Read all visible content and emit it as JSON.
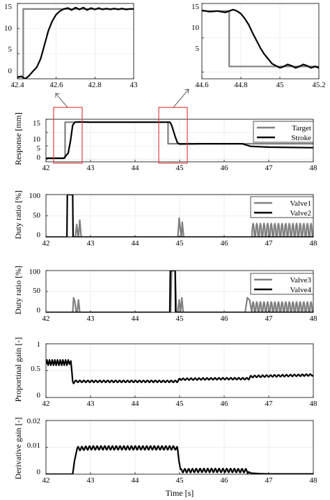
{
  "chart_data": [
    {
      "id": "zoom1",
      "type": "line",
      "xlim": [
        42.4,
        43.0
      ],
      "ylim": [
        0,
        15
      ],
      "xticks": [
        42.4,
        42.6,
        42.8,
        43
      ],
      "xtick_labels": [
        "42.4",
        "42.6",
        "42.8",
        "43"
      ],
      "yticks": [
        0,
        5,
        10,
        15
      ],
      "ytick_labels": [
        "0",
        "5",
        "10",
        "15"
      ],
      "xlabel": "",
      "ylabel": "",
      "grid": true,
      "series": [
        {
          "color": "#808080",
          "x": [
            42.4,
            42.43,
            42.43,
            43.0
          ],
          "y": [
            0.4,
            0.4,
            13.9,
            13.9
          ]
        },
        {
          "color": "#000000",
          "x": [
            42.4,
            42.42,
            42.44,
            42.46,
            42.48,
            42.5,
            42.52,
            42.54,
            42.56,
            42.58,
            42.6,
            42.62,
            42.64,
            42.66,
            42.68,
            42.7,
            42.72,
            42.74,
            42.76,
            42.78,
            42.8,
            42.82,
            42.84,
            42.86,
            42.88,
            42.9,
            42.92,
            42.94,
            42.96,
            42.98,
            43.0
          ],
          "y": [
            0.3,
            0.5,
            0.0,
            0.6,
            1.5,
            2.3,
            4.0,
            6.8,
            9.6,
            11.5,
            12.8,
            13.5,
            13.9,
            14.1,
            13.7,
            14.2,
            13.8,
            14.2,
            13.7,
            14.1,
            13.8,
            14.1,
            13.8,
            14.0,
            13.8,
            14.0,
            13.8,
            14.0,
            13.8,
            13.9,
            13.9
          ]
        }
      ]
    },
    {
      "id": "zoom2",
      "type": "line",
      "xlim": [
        44.6,
        45.2
      ],
      "ylim": [
        4,
        15
      ],
      "xticks": [
        44.6,
        44.8,
        45,
        45.2
      ],
      "xtick_labels": [
        "44.6",
        "44.8",
        "45",
        "45.2"
      ],
      "yticks": [
        5,
        10,
        15
      ],
      "ytick_labels": [
        "5",
        "10",
        "15"
      ],
      "xlabel": "",
      "ylabel": "",
      "grid": true,
      "series": [
        {
          "color": "#808080",
          "x": [
            44.6,
            44.74,
            44.74,
            45.2
          ],
          "y": [
            13.9,
            13.9,
            5.8,
            5.8
          ]
        },
        {
          "color": "#000000",
          "x": [
            44.6,
            44.64,
            44.68,
            44.72,
            44.76,
            44.78,
            44.8,
            44.82,
            44.84,
            44.86,
            44.88,
            44.9,
            44.92,
            44.94,
            44.96,
            44.98,
            45.0,
            45.02,
            45.04,
            45.06,
            45.08,
            45.1,
            45.12,
            45.14,
            45.16,
            45.18,
            45.2
          ],
          "y": [
            14.0,
            13.8,
            13.9,
            13.7,
            14.1,
            13.9,
            13.5,
            12.8,
            11.9,
            10.7,
            9.6,
            8.5,
            7.6,
            6.9,
            6.2,
            5.9,
            5.6,
            5.8,
            6.1,
            5.9,
            5.6,
            5.8,
            6.1,
            5.9,
            5.6,
            5.8,
            5.6
          ]
        }
      ]
    },
    {
      "id": "response",
      "type": "line",
      "xlim": [
        42,
        48
      ],
      "ylim": [
        -1,
        15
      ],
      "xticks": [
        42,
        43,
        44,
        45,
        46,
        47,
        48
      ],
      "xtick_labels": [
        "42",
        "43",
        "44",
        "45",
        "46",
        "47",
        "48"
      ],
      "yticks": [
        0,
        5,
        10,
        15
      ],
      "ytick_labels": [
        "0",
        "5",
        "10",
        "15"
      ],
      "xlabel": "",
      "ylabel": "Response [mm]",
      "grid": true,
      "legend": "top-right",
      "series": [
        {
          "name": "Target",
          "color": "#808080",
          "x": [
            42,
            42.43,
            42.43,
            44.74,
            44.74,
            46.5,
            48
          ],
          "y": [
            0.4,
            0.4,
            13.9,
            13.9,
            5.8,
            5.8,
            5.8
          ]
        },
        {
          "name": "Stroke",
          "color": "#000000",
          "x": [
            42,
            42.4,
            42.5,
            42.55,
            42.6,
            42.65,
            42.75,
            43,
            44,
            44.7,
            44.78,
            44.82,
            44.86,
            44.9,
            44.95,
            45.0,
            45.5,
            46,
            46.4,
            46.5,
            46.6,
            47,
            48
          ],
          "y": [
            0.3,
            0.3,
            2.3,
            6.8,
            12.8,
            13.9,
            14.0,
            13.9,
            13.9,
            13.9,
            13.9,
            12.8,
            10.7,
            8.5,
            6.2,
            5.7,
            5.8,
            5.8,
            5.8,
            5.3,
            4.8,
            4.5,
            4.3
          ]
        }
      ]
    },
    {
      "id": "duty12",
      "type": "line",
      "xlim": [
        42,
        48
      ],
      "ylim": [
        0,
        100
      ],
      "xticks": [
        42,
        43,
        44,
        45,
        46,
        47,
        48
      ],
      "xtick_labels": [
        "42",
        "43",
        "44",
        "45",
        "46",
        "47",
        "48"
      ],
      "yticks": [
        0,
        50,
        100
      ],
      "ytick_labels": [
        "0",
        "50",
        "100"
      ],
      "xlabel": "",
      "ylabel": "Duty ratio [%]",
      "grid": true,
      "legend": "top-right",
      "series": [
        {
          "name": "Valve1",
          "color": "#808080",
          "x": [
            42,
            42.66,
            42.69,
            42.72,
            42.73,
            42.76,
            42.79,
            44.96,
            44.99,
            45.02,
            45.04,
            45.06,
            45.09,
            46.58,
            48
          ],
          "y": [
            0,
            0,
            30,
            0,
            0,
            40,
            0,
            0,
            45,
            15,
            0,
            35,
            0,
            0,
            0
          ]
        },
        {
          "name": "Valve2",
          "color": "#000000",
          "x": [
            42,
            42.47,
            42.48,
            42.6,
            42.61,
            48
          ],
          "y": [
            0,
            0,
            100,
            100,
            0,
            0
          ]
        }
      ],
      "oscillation": {
        "series": "Valve1",
        "x_start": 46.62,
        "x_end": 48,
        "cycles": 17,
        "amplitude": 32
      }
    },
    {
      "id": "duty34",
      "type": "line",
      "xlim": [
        42,
        48
      ],
      "ylim": [
        0,
        100
      ],
      "xticks": [
        42,
        43,
        44,
        45,
        46,
        47,
        48
      ],
      "xtick_labels": [
        "42",
        "43",
        "44",
        "45",
        "46",
        "47",
        "48"
      ],
      "yticks": [
        0,
        50,
        100
      ],
      "ytick_labels": [
        "0",
        "50",
        "100"
      ],
      "xlabel": "",
      "ylabel": "Duty ratio [%]",
      "grid": true,
      "legend": "top-right",
      "series": [
        {
          "name": "Valve3",
          "color": "#808080",
          "x": [
            42,
            42.6,
            42.62,
            42.65,
            42.68,
            42.7,
            42.73,
            42.76,
            44.8,
            44.82,
            44.9,
            44.93,
            44.96,
            44.99,
            45.02,
            45.05,
            45.08,
            45.11,
            46.47,
            46.52,
            46.57,
            46.62,
            48
          ],
          "y": [
            0,
            0,
            35,
            25,
            0,
            0,
            30,
            0,
            0,
            100,
            100,
            0,
            0,
            30,
            0,
            35,
            0,
            0,
            0,
            35,
            30,
            25,
            25
          ]
        },
        {
          "name": "Valve4",
          "color": "#000000",
          "x": [
            42,
            44.78,
            44.79,
            44.9,
            44.91,
            48
          ],
          "y": [
            0,
            0,
            100,
            100,
            0,
            0
          ]
        }
      ],
      "oscillation": {
        "series": "Valve3",
        "x_start": 46.62,
        "x_end": 48,
        "cycles": 17,
        "amplitude": 25
      }
    },
    {
      "id": "kp",
      "type": "line",
      "xlim": [
        42,
        48
      ],
      "ylim": [
        0,
        1
      ],
      "xticks": [
        42,
        43,
        44,
        45,
        46,
        47,
        48
      ],
      "xtick_labels": [
        "42",
        "43",
        "44",
        "45",
        "46",
        "47",
        "48"
      ],
      "yticks": [
        0,
        0.5,
        1
      ],
      "ytick_labels": [
        "0",
        "0.5",
        "1"
      ],
      "xlabel": "",
      "ylabel": "Proportinal gain [-]",
      "grid": true,
      "series": [
        {
          "color": "#000000",
          "x": [
            42,
            42.02,
            42.05,
            42.08,
            42.11,
            42.14,
            42.17,
            42.2,
            42.23,
            42.26,
            42.29,
            42.32,
            42.35,
            42.38,
            42.41,
            42.44,
            42.47,
            42.5,
            42.53,
            42.56,
            42.58,
            42.6,
            42.62,
            42.65,
            43,
            44,
            44.95,
            45,
            46,
            46.55,
            46.6,
            47,
            48
          ],
          "y": [
            0.62,
            0.7,
            0.6,
            0.7,
            0.6,
            0.7,
            0.6,
            0.7,
            0.6,
            0.7,
            0.6,
            0.7,
            0.6,
            0.7,
            0.6,
            0.7,
            0.6,
            0.7,
            0.62,
            0.68,
            0.5,
            0.3,
            0.26,
            0.3,
            0.3,
            0.3,
            0.3,
            0.34,
            0.35,
            0.35,
            0.39,
            0.4,
            0.42
          ]
        }
      ],
      "oscillation": {
        "series": 0,
        "x_start": 42.65,
        "x_end": 48,
        "cycles": 60,
        "amplitude": 0.018
      }
    },
    {
      "id": "kd",
      "type": "line",
      "xlim": [
        42,
        48
      ],
      "ylim": [
        0,
        0.02
      ],
      "xticks": [
        42,
        43,
        44,
        45,
        46,
        47,
        48
      ],
      "xtick_labels": [
        "42",
        "43",
        "44",
        "45",
        "46",
        "47",
        "48"
      ],
      "yticks": [
        0,
        0.01,
        0.02
      ],
      "ytick_labels": [
        "0",
        "0.01",
        "0.02"
      ],
      "xlabel": "Time [s]",
      "ylabel": "Derivative gain [-]",
      "grid": true,
      "series": [
        {
          "color": "#000000",
          "x": [
            42,
            42.6,
            42.64,
            42.7,
            43,
            44,
            44.9,
            44.95,
            45.0,
            45.02,
            45.5,
            46,
            46.5,
            46.6,
            46.8,
            47,
            48
          ],
          "y": [
            0,
            0,
            0.005,
            0.0095,
            0.0098,
            0.0098,
            0.0098,
            0.0095,
            0.004,
            0.0013,
            0.0014,
            0.0014,
            0.0013,
            0.0004,
            0.0002,
            0.0001,
            0.0001
          ]
        }
      ],
      "oscillation": {
        "series": 0,
        "x_start": 42.7,
        "x_end": 46.55,
        "cycles": 45,
        "amplitude": 0.0007
      }
    }
  ]
}
